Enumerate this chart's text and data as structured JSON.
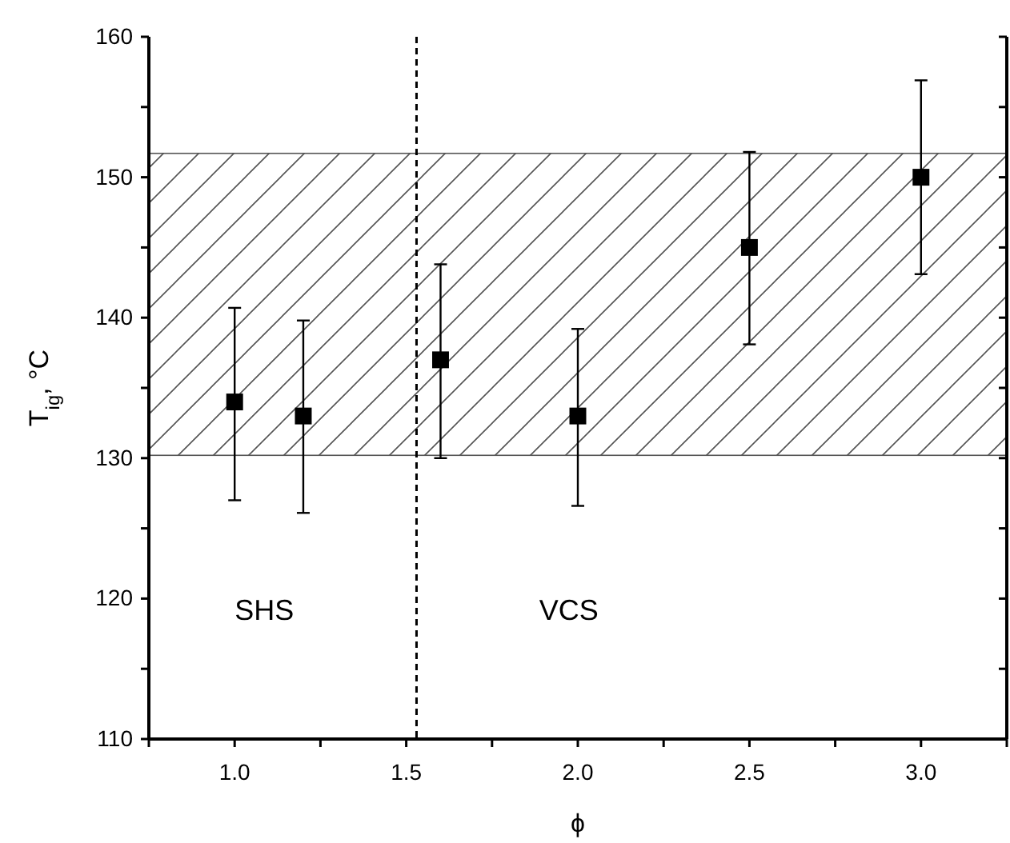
{
  "chart_data": {
    "type": "scatter",
    "xlabel": "ϕ",
    "ylabel": "T$_{ig}$, °C",
    "x": [
      1.0,
      1.2,
      1.6,
      2.0,
      2.5,
      3.0
    ],
    "series": [
      {
        "color": "#000000",
        "values": [
          134,
          133,
          137,
          133,
          145,
          150
        ],
        "errors": [
          [
            127,
            140.7
          ],
          [
            126.1,
            139.8
          ],
          [
            130,
            143.8
          ],
          [
            126.6,
            139.2
          ],
          [
            138.1,
            151.8
          ],
          [
            143.1,
            156.9
          ]
        ]
      }
    ],
    "marker": "square",
    "xlim": [
      0.75,
      3.25
    ],
    "xticks": [
      {
        "value": 0.75,
        "label": null
      },
      {
        "value": 1,
        "label": "1.0"
      },
      {
        "value": 1.25,
        "label": null
      },
      1.5,
      {
        "value": 1.75,
        "label": null
      },
      {
        "value": 2,
        "label": "2.0"
      },
      {
        "value": 2.25,
        "label": null
      },
      2.5,
      {
        "value": 2.75,
        "label": null
      },
      {
        "value": 3,
        "label": "3.0"
      },
      {
        "value": 3.25,
        "label": null
      }
    ],
    "ylim": [
      110,
      160
    ],
    "yticks": [
      110,
      {
        "value": 115,
        "label": null
      },
      120,
      {
        "value": 125,
        "label": null
      },
      130,
      {
        "value": 135,
        "label": null
      },
      140,
      {
        "value": 145,
        "label": null
      },
      150,
      {
        "value": 155,
        "label": null
      },
      160
    ],
    "ref_lines": [
      {
        "axis": "x",
        "value": 1.53,
        "line_style": "dashed",
        "color": "#000000"
      }
    ],
    "bands": [
      {
        "axis": "y",
        "from": 130.2,
        "to": 151.7,
        "color": "#555555"
      }
    ],
    "annotations": [
      "SHS",
      "VCS"
    ]
  }
}
